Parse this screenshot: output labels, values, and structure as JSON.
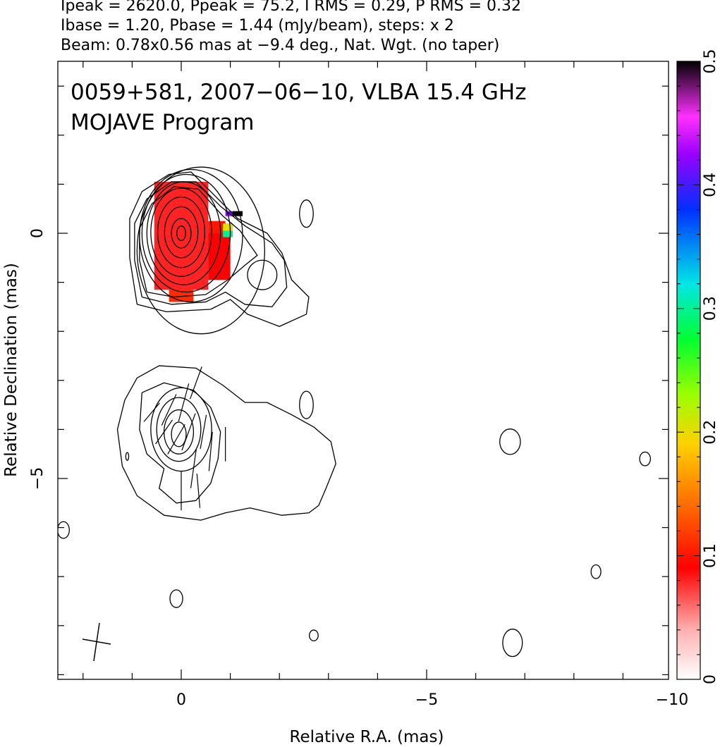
{
  "header": {
    "line1": "Ipeak = 2620.0, Ppeak = 75.2, I RMS = 0.29, P RMS = 0.32",
    "line2": "Ibase = 1.20, Pbase = 1.44 (mJy/beam), steps: x 2",
    "line3": "Beam: 0.78x0.56 mas at −9.4 deg., Nat. Wgt. (no taper)"
  },
  "plot": {
    "title_line1": "0059+581, 2007−06−10, VLBA 15.4 GHz",
    "title_line2": "MOJAVE Program"
  },
  "chart_data": {
    "type": "heatmap",
    "title": "0059+581, 2007−06−10, VLBA 15.4 GHz",
    "subtitle": "MOJAVE Program",
    "xlabel": "Relative R.A. (mas)",
    "ylabel": "Relative Declination (mas)",
    "xlim": [
      2.5,
      -10
    ],
    "ylim": [
      -9,
      3.5
    ],
    "x_ticks": [
      0,
      -5,
      -10
    ],
    "x_tick_labels": [
      "0",
      "−5",
      "−10"
    ],
    "y_ticks": [
      0,
      -5
    ],
    "y_tick_labels": [
      "0",
      "−5"
    ],
    "colorbar": {
      "range": [
        0,
        0.5
      ],
      "ticks": [
        0,
        0.1,
        0.2,
        0.3,
        0.4,
        0.5
      ],
      "tick_labels": [
        "0",
        "0.1",
        "0.2",
        "0.3",
        "0.4",
        "0.5"
      ]
    },
    "beam": {
      "major_mas": 0.78,
      "minor_mas": 0.56,
      "pa_deg": -9.4
    },
    "contours": [
      {
        "cx": -0.4,
        "cy": -0.35,
        "rx": 1.3,
        "ry": 1.7
      },
      {
        "cx": -0.2,
        "cy": -0.05,
        "rx": 1.05,
        "ry": 1.35
      },
      {
        "cx": -0.1,
        "cy": 0.0,
        "rx": 0.9,
        "ry": 1.2
      },
      {
        "cx": -0.05,
        "cy": 0.0,
        "rx": 0.75,
        "ry": 1.05
      },
      {
        "cx": 0.0,
        "cy": 0.02,
        "rx": 0.62,
        "ry": 0.9
      },
      {
        "cx": 0.0,
        "cy": 0.02,
        "rx": 0.48,
        "ry": 0.72
      },
      {
        "cx": 0.0,
        "cy": 0.02,
        "rx": 0.34,
        "ry": 0.52
      },
      {
        "cx": 0.0,
        "cy": 0.0,
        "rx": 0.2,
        "ry": 0.3
      },
      {
        "cx": 0.0,
        "cy": 0.0,
        "rx": 0.09,
        "ry": 0.15
      },
      {
        "cx": -1.65,
        "cy": -0.85,
        "rx": 0.3,
        "ry": 0.3
      },
      {
        "cx": -2.55,
        "cy": 0.4,
        "rx": 0.14,
        "ry": 0.28
      },
      {
        "cx": 0.0,
        "cy": -4.0,
        "rx": 0.62,
        "ry": 0.85
      },
      {
        "cx": 0.05,
        "cy": -4.0,
        "rx": 0.45,
        "ry": 0.65
      },
      {
        "cx": 0.05,
        "cy": -4.05,
        "rx": 0.3,
        "ry": 0.45
      },
      {
        "cx": 0.05,
        "cy": -4.1,
        "rx": 0.15,
        "ry": 0.25
      },
      {
        "cx": -2.55,
        "cy": -3.5,
        "rx": 0.14,
        "ry": 0.28
      },
      {
        "cx": -6.7,
        "cy": -4.25,
        "rx": 0.21,
        "ry": 0.26
      },
      {
        "cx": -9.45,
        "cy": -4.6,
        "rx": 0.11,
        "ry": 0.14
      },
      {
        "cx": 2.4,
        "cy": -6.05,
        "rx": 0.12,
        "ry": 0.17
      },
      {
        "cx": -8.45,
        "cy": -6.9,
        "rx": 0.1,
        "ry": 0.14
      },
      {
        "cx": 0.1,
        "cy": -7.45,
        "rx": 0.13,
        "ry": 0.18
      },
      {
        "cx": -2.7,
        "cy": -8.2,
        "rx": 0.09,
        "ry": 0.11
      },
      {
        "cx": -6.75,
        "cy": -8.35,
        "rx": 0.2,
        "ry": 0.28
      },
      {
        "cx": 1.1,
        "cy": -4.55,
        "rx": 0.03,
        "ry": 0.08
      }
    ],
    "contour_outlines": [
      {
        "points": [
          [
            1.15,
            -3.4
          ],
          [
            0.9,
            -2.95
          ],
          [
            0.45,
            -2.7
          ],
          [
            -0.3,
            -2.75
          ],
          [
            -0.85,
            -3.1
          ],
          [
            -1.3,
            -3.45
          ],
          [
            -1.75,
            -3.45
          ],
          [
            -2.25,
            -3.7
          ],
          [
            -2.7,
            -3.95
          ],
          [
            -3.05,
            -4.25
          ],
          [
            -3.15,
            -4.7
          ],
          [
            -2.95,
            -5.2
          ],
          [
            -2.8,
            -5.55
          ],
          [
            -2.6,
            -5.7
          ],
          [
            -2.05,
            -5.75
          ],
          [
            -1.4,
            -5.6
          ],
          [
            -0.9,
            -5.7
          ],
          [
            -0.4,
            -5.85
          ],
          [
            0.35,
            -5.75
          ],
          [
            0.9,
            -5.35
          ],
          [
            1.2,
            -4.75
          ],
          [
            1.3,
            -4.0
          ],
          [
            1.15,
            -3.4
          ]
        ]
      },
      {
        "points": [
          [
            0.8,
            -3.25
          ],
          [
            0.35,
            -3.05
          ],
          [
            -0.25,
            -3.2
          ],
          [
            -0.6,
            -3.55
          ],
          [
            -0.8,
            -4.05
          ],
          [
            -0.75,
            -4.6
          ],
          [
            -0.6,
            -5.1
          ],
          [
            -0.3,
            -5.45
          ],
          [
            0.1,
            -5.5
          ],
          [
            0.45,
            -5.2
          ],
          [
            0.35,
            -4.8
          ],
          [
            0.7,
            -4.5
          ],
          [
            0.85,
            -4.0
          ],
          [
            0.8,
            -3.25
          ]
        ]
      },
      {
        "points": [
          [
            0.9,
            -1.45
          ],
          [
            0.3,
            -1.6
          ],
          [
            -0.6,
            -1.55
          ],
          [
            -1.0,
            -1.35
          ],
          [
            -1.35,
            -1.65
          ],
          [
            -2.0,
            -1.9
          ],
          [
            -2.55,
            -1.65
          ],
          [
            -2.6,
            -1.3
          ],
          [
            -2.25,
            -0.95
          ],
          [
            -2.05,
            -0.4
          ],
          [
            -1.75,
            0.0
          ],
          [
            -1.15,
            0.3
          ],
          [
            -0.7,
            0.75
          ],
          [
            -0.2,
            1.25
          ],
          [
            0.25,
            1.2
          ],
          [
            0.8,
            0.85
          ],
          [
            1.05,
            0.3
          ],
          [
            1.05,
            -0.5
          ],
          [
            0.9,
            -1.45
          ]
        ]
      },
      {
        "points": [
          [
            0.8,
            -1.3
          ],
          [
            0.2,
            -1.45
          ],
          [
            -0.5,
            -1.4
          ],
          [
            -0.9,
            -1.2
          ],
          [
            -1.3,
            -1.45
          ],
          [
            -1.85,
            -1.5
          ],
          [
            -2.15,
            -1.1
          ],
          [
            -2.1,
            -0.55
          ],
          [
            -1.85,
            -0.2
          ],
          [
            -1.3,
            0.15
          ],
          [
            -0.8,
            0.55
          ],
          [
            -0.3,
            1.05
          ],
          [
            0.2,
            1.05
          ],
          [
            0.7,
            0.7
          ],
          [
            0.95,
            0.2
          ],
          [
            0.95,
            -0.55
          ],
          [
            0.8,
            -1.3
          ]
        ]
      },
      {
        "points": [
          [
            0.7,
            -1.2
          ],
          [
            0.15,
            -1.3
          ],
          [
            -0.5,
            -1.25
          ],
          [
            -0.95,
            -0.95
          ],
          [
            -1.3,
            -0.65
          ],
          [
            -1.55,
            -0.45
          ],
          [
            -1.2,
            0.05
          ],
          [
            -0.85,
            0.35
          ],
          [
            -0.35,
            0.9
          ],
          [
            0.15,
            0.95
          ],
          [
            0.6,
            0.6
          ],
          [
            0.85,
            0.1
          ],
          [
            0.85,
            -0.55
          ],
          [
            0.7,
            -1.2
          ]
        ]
      }
    ],
    "pol_pixels": [
      {
        "x0": 0.55,
        "x1": -0.55,
        "y0": 1.05,
        "y1": -1.15,
        "level": 0.08
      },
      {
        "x0": -0.55,
        "x1": -0.9,
        "y0": 0.25,
        "y1": -0.55,
        "level": 0.1
      },
      {
        "x0": -0.55,
        "x1": -1.0,
        "y0": 0.0,
        "y1": -0.95,
        "level": 0.09
      },
      {
        "x0": 0.25,
        "x1": -0.25,
        "y0": -1.15,
        "y1": -1.4,
        "level": 0.11
      },
      {
        "x0": -0.85,
        "x1": -1.05,
        "y0": 0.2,
        "y1": 0.05,
        "level": 0.2
      },
      {
        "x0": -0.85,
        "x1": -1.05,
        "y0": 0.05,
        "y1": -0.08,
        "level": 0.3
      },
      {
        "x0": -0.9,
        "x1": -1.2,
        "y0": 0.45,
        "y1": 0.35,
        "level": 0.42
      },
      {
        "x0": -1.15,
        "x1": -1.25,
        "y0": 0.45,
        "y1": 0.35,
        "level": 0.46
      },
      {
        "x0": -1.05,
        "x1": -1.25,
        "y0": 0.45,
        "y1": 0.35,
        "level": 0.5
      }
    ],
    "evpa_ticks": [
      {
        "x": -0.3,
        "y": -3.05,
        "len": 0.7,
        "angle": -20
      },
      {
        "x": -0.05,
        "y": -3.45,
        "len": 0.8,
        "angle": -15
      },
      {
        "x": 0.25,
        "y": -3.6,
        "len": 0.7,
        "angle": -25
      },
      {
        "x": 0.35,
        "y": -4.05,
        "len": 0.6,
        "angle": -35
      },
      {
        "x": 0.1,
        "y": -4.2,
        "len": 0.7,
        "angle": -30
      },
      {
        "x": -0.15,
        "y": -4.05,
        "len": 0.8,
        "angle": -20
      },
      {
        "x": -0.45,
        "y": -4.05,
        "len": 0.7,
        "angle": -10
      },
      {
        "x": -0.6,
        "y": -4.45,
        "len": 0.8,
        "angle": -5
      },
      {
        "x": -0.9,
        "y": -4.3,
        "len": 0.7,
        "angle": 0
      },
      {
        "x": -0.25,
        "y": -4.8,
        "len": 0.8,
        "angle": -8
      },
      {
        "x": 0.0,
        "y": -5.25,
        "len": 0.8,
        "angle": 0
      },
      {
        "x": -0.35,
        "y": -5.25,
        "len": 0.7,
        "angle": 5
      },
      {
        "x": 0.6,
        "y": -3.65,
        "len": 0.5,
        "angle": -40
      }
    ]
  }
}
